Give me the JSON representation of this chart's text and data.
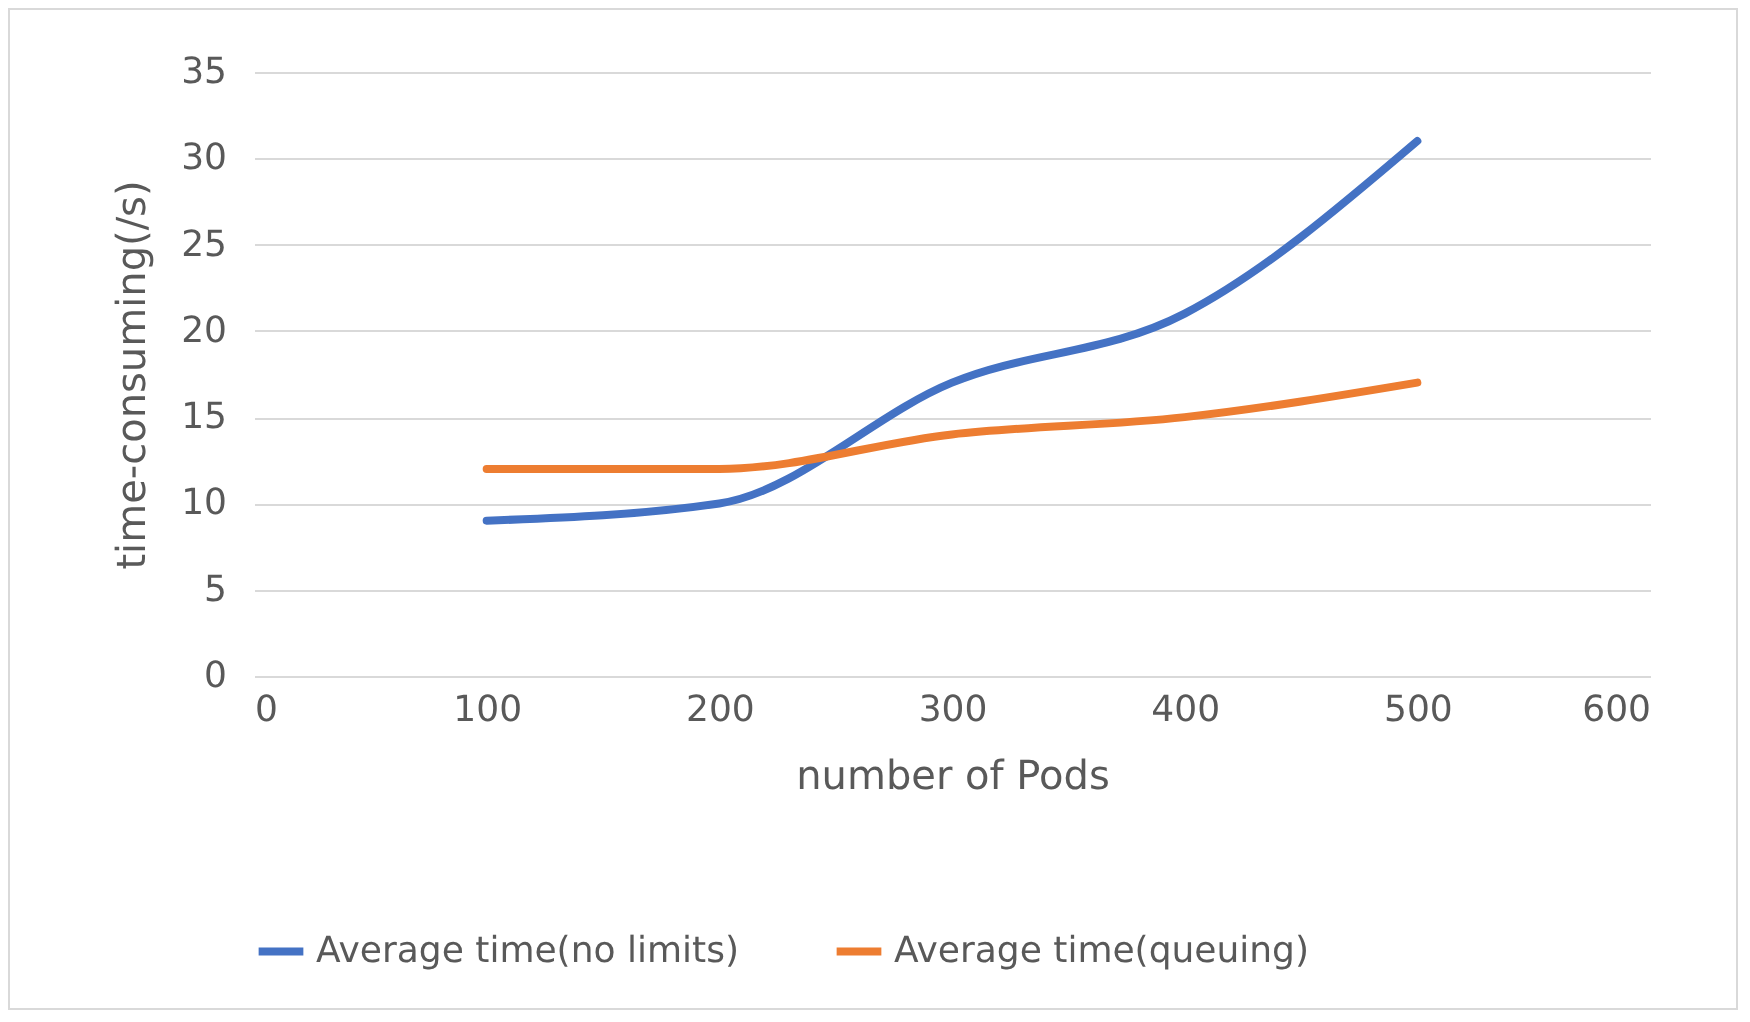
{
  "chart_data": {
    "type": "line",
    "xlabel": "number of Pods",
    "ylabel": "time-consuming(/s)",
    "x": [
      100,
      200,
      300,
      400,
      500
    ],
    "series": [
      {
        "name": "Average time(no limits)",
        "color": "#4472c4",
        "values": [
          9,
          10,
          17,
          21,
          31
        ]
      },
      {
        "name": "Average time(queuing)",
        "color": "#ed7d31",
        "values": [
          12,
          12,
          14,
          15,
          17
        ]
      }
    ],
    "xlim": [
      0,
      600
    ],
    "xticks": [
      0,
      100,
      200,
      300,
      400,
      500,
      600
    ],
    "ylim": [
      0,
      35
    ],
    "yticks": [
      0,
      5,
      10,
      15,
      20,
      25,
      30,
      35
    ],
    "grid": "y",
    "legend": "bottom",
    "marker": "none",
    "line_style": "solid"
  }
}
